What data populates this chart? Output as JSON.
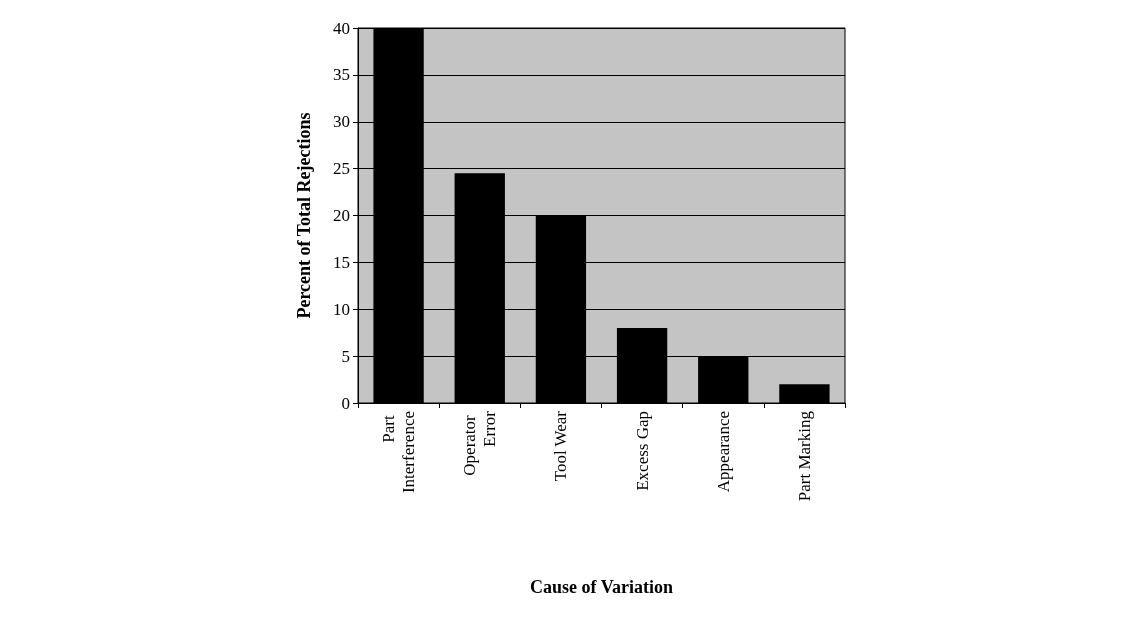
{
  "chart_data": {
    "type": "bar",
    "xlabel": "Cause of Variation",
    "ylabel": "Percent of Total Rejections",
    "categories": [
      "Part Interference",
      "Operator Error",
      "Tool Wear",
      "Excess Gap",
      "Appearance",
      "Part Marking"
    ],
    "values": [
      40,
      24.5,
      20,
      8,
      5,
      2
    ],
    "color": "#000000",
    "ylim": [
      0,
      40
    ],
    "yticks": [
      0,
      5,
      10,
      15,
      20,
      25,
      30,
      35,
      40
    ],
    "grid": "y"
  }
}
